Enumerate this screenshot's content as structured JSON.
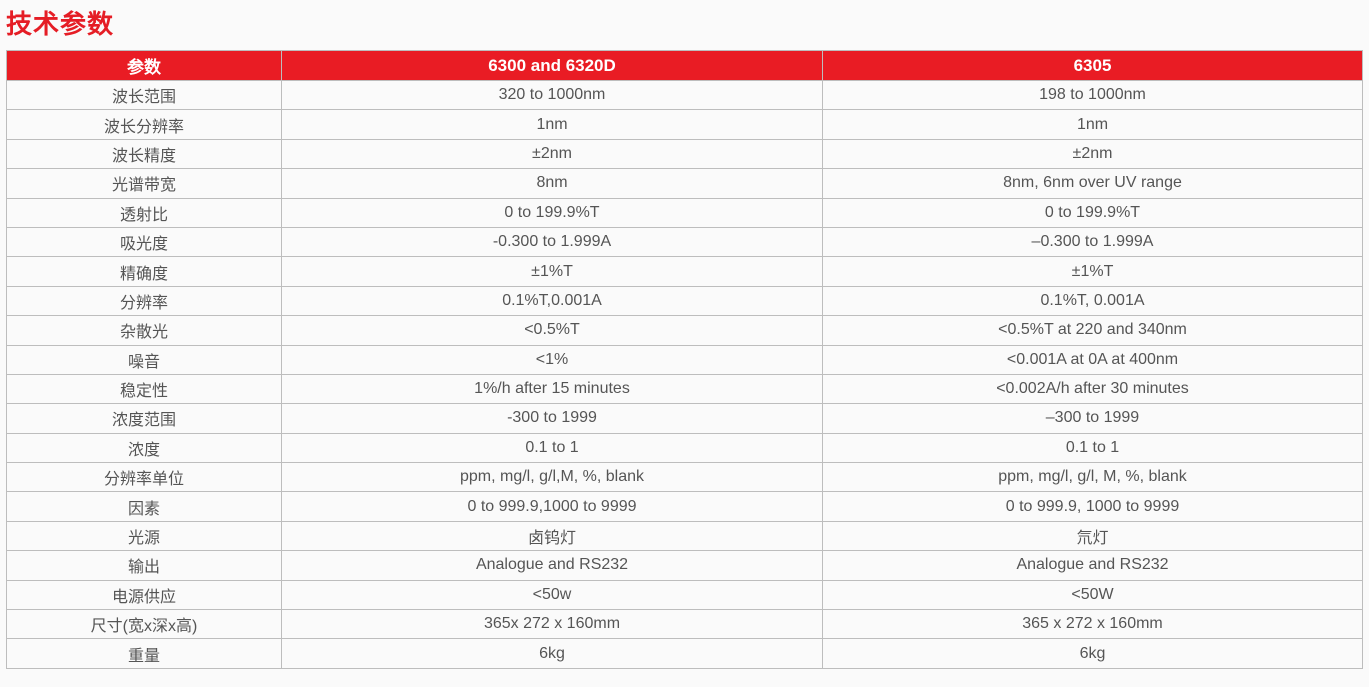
{
  "title": "技术参数",
  "colors": {
    "accent": "#e91c24"
  },
  "table": {
    "headers": [
      "参数",
      "6300 and 6320D",
      "6305"
    ],
    "rows": [
      [
        "波长范围",
        "320 to 1000nm",
        "198 to 1000nm"
      ],
      [
        "波长分辨率",
        "1nm",
        "1nm"
      ],
      [
        "波长精度",
        "±2nm",
        "±2nm"
      ],
      [
        "光谱带宽",
        "8nm",
        "8nm, 6nm over UV range"
      ],
      [
        "透射比",
        "0 to 199.9%T",
        "0 to 199.9%T"
      ],
      [
        "吸光度",
        "-0.300 to 1.999A",
        "–0.300 to 1.999A"
      ],
      [
        "精确度",
        "±1%T",
        "±1%T"
      ],
      [
        "分辨率",
        "0.1%T,0.001A",
        "0.1%T, 0.001A"
      ],
      [
        "杂散光",
        "<0.5%T",
        "<0.5%T at 220 and 340nm"
      ],
      [
        "噪音",
        "<1%",
        "<0.001A at 0A at 400nm"
      ],
      [
        "稳定性",
        "1%/h after 15 minutes",
        "<0.002A/h after 30 minutes"
      ],
      [
        "浓度范围",
        "-300 to 1999",
        "–300 to 1999"
      ],
      [
        "浓度",
        "0.1 to 1",
        "0.1 to 1"
      ],
      [
        "分辨率单位",
        "ppm, mg/l, g/l,M, %, blank",
        "ppm, mg/l, g/l, M, %, blank"
      ],
      [
        "因素",
        "0 to 999.9,1000 to 9999",
        "0 to 999.9, 1000 to 9999"
      ],
      [
        "光源",
        "卤钨灯",
        "氘灯"
      ],
      [
        "输出",
        "Analogue and RS232",
        "Analogue and RS232"
      ],
      [
        "电源供应",
        "<50w",
        "<50W"
      ],
      [
        "尺寸(宽x深x高)",
        "365x 272 x 160mm",
        "365 x 272 x 160mm"
      ],
      [
        "重量",
        "6kg",
        "6kg"
      ]
    ]
  }
}
